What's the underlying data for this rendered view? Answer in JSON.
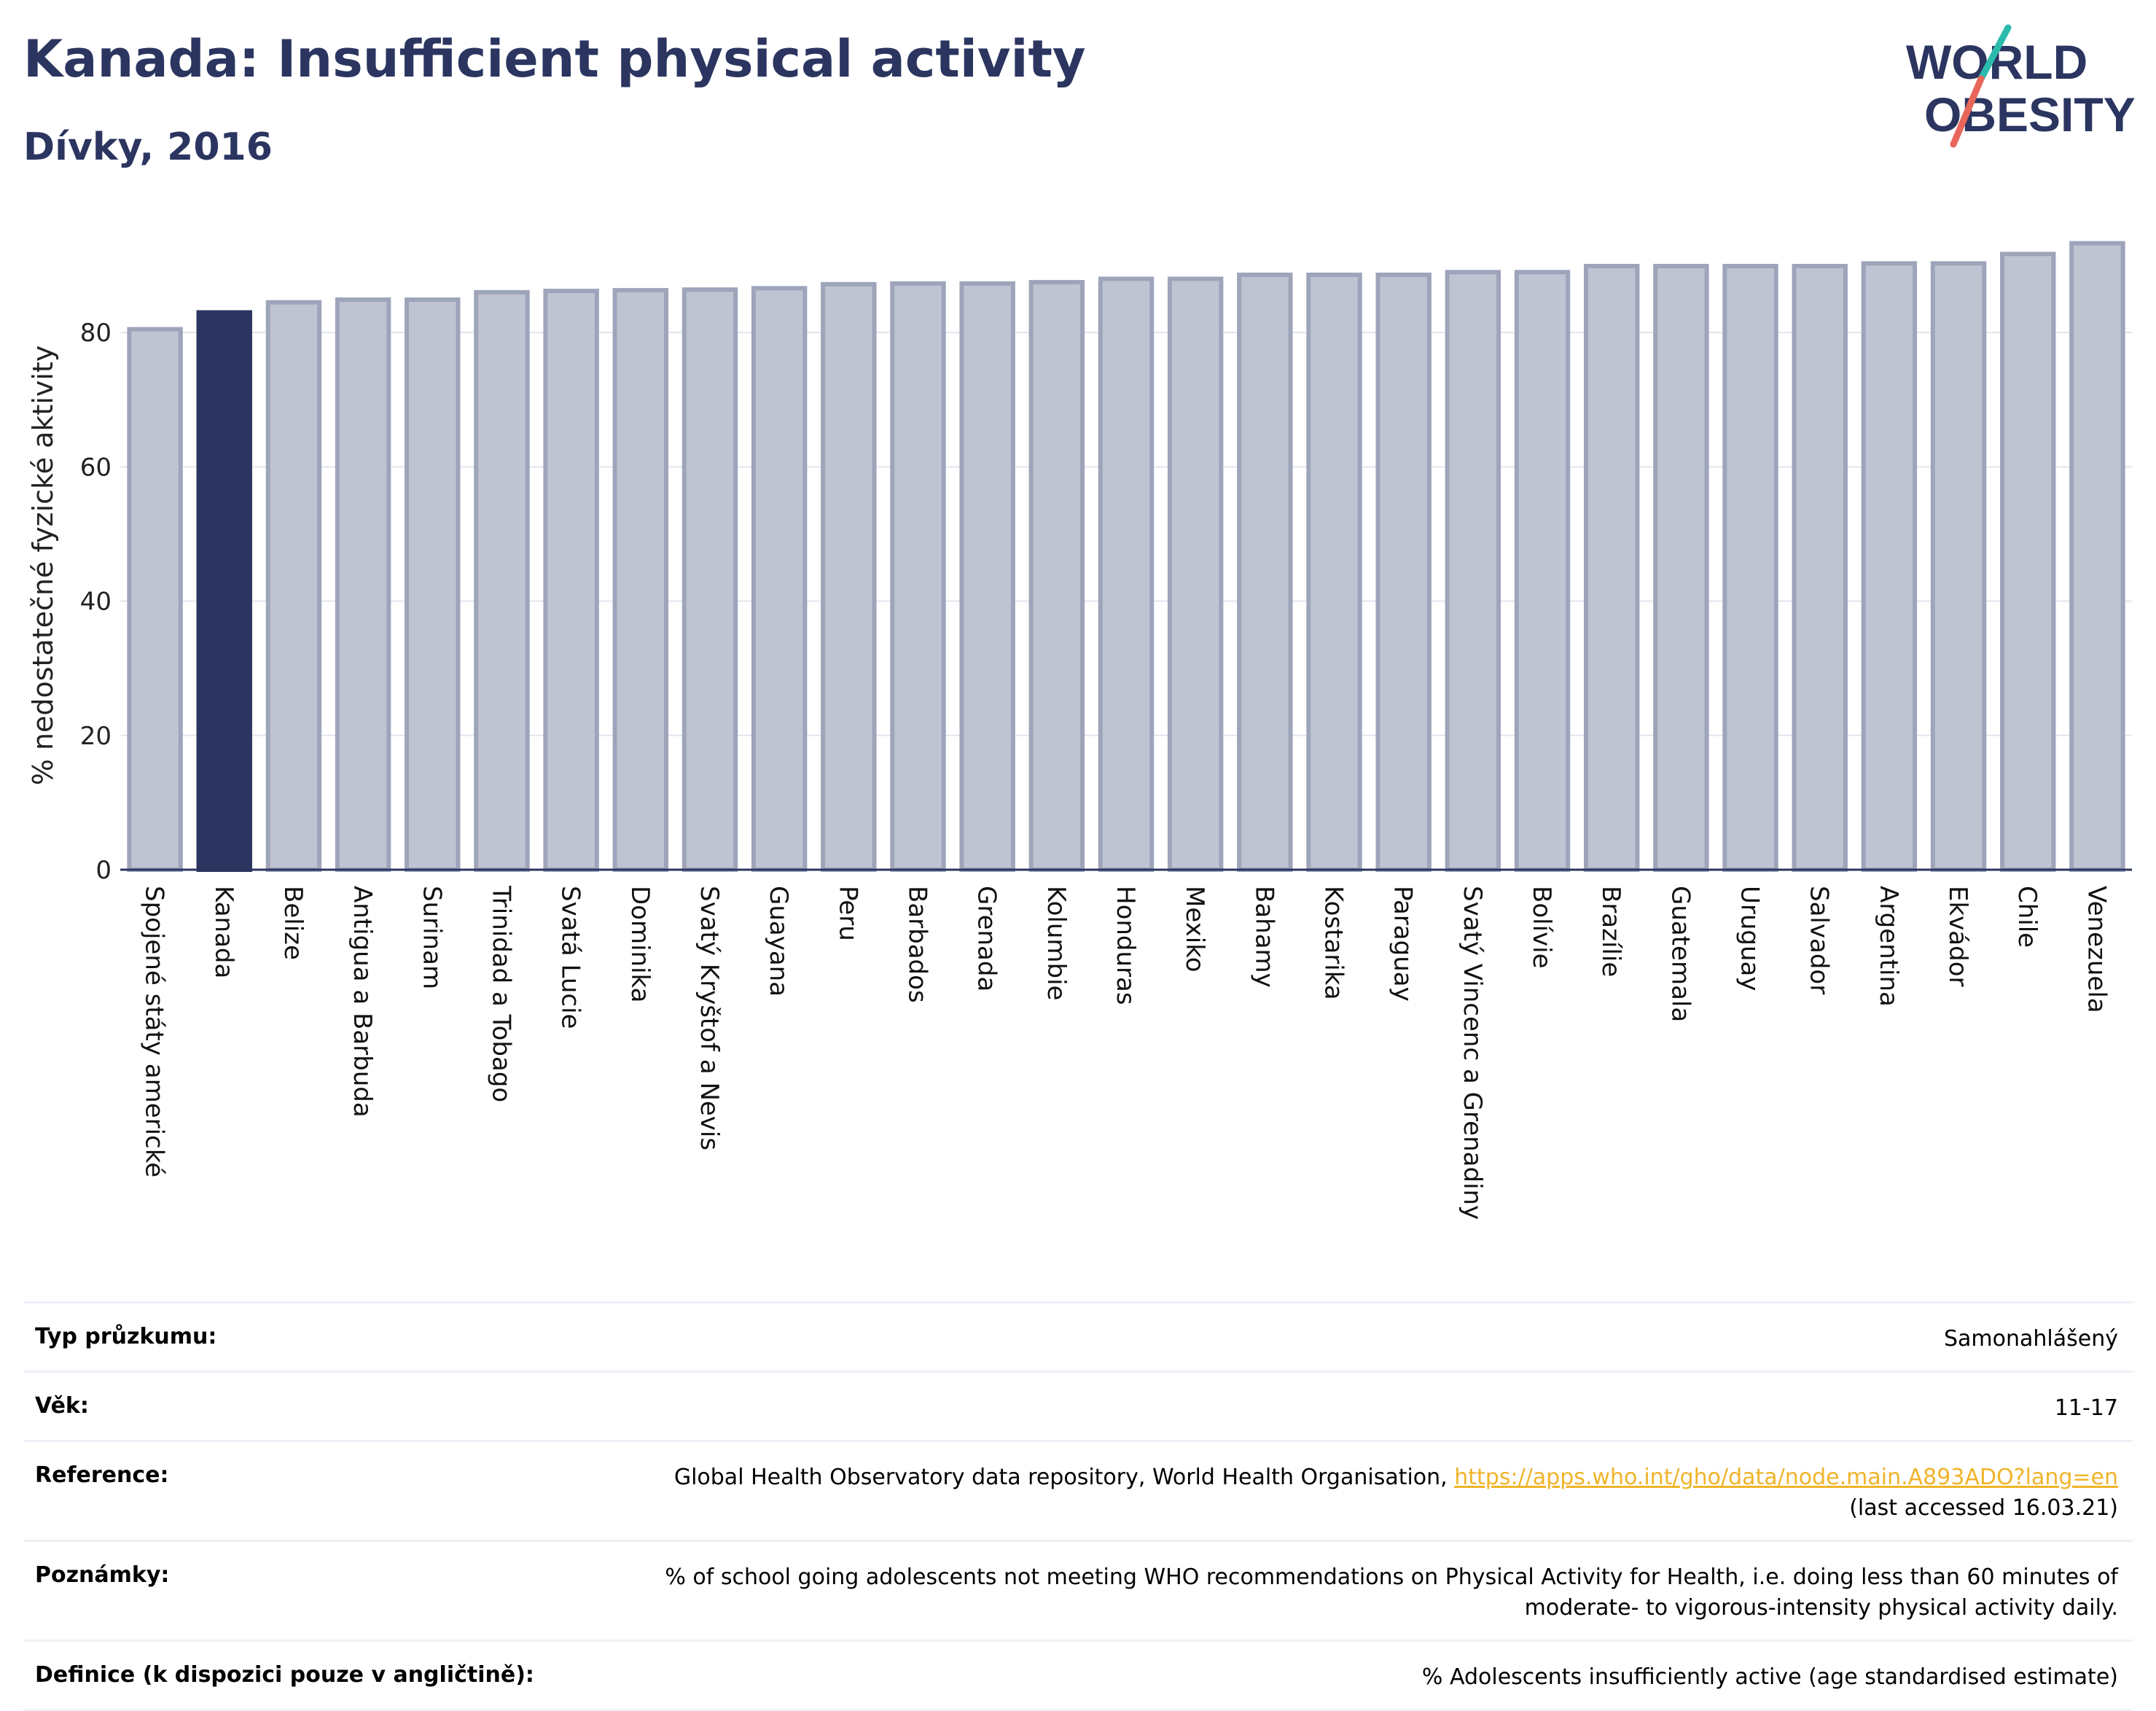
{
  "header": {
    "title": "Kanada: Insufficient physical activity",
    "subtitle": "Dívky, 2016",
    "logo_line1": "WORLD",
    "logo_line2": "OBESITY"
  },
  "colors": {
    "title": "#2b3560",
    "highlight_bar": "#2b3560",
    "bar_fill": "#c0c4d2",
    "bar_stroke": "#9ea4ba",
    "link": "#f0b429",
    "logo_teal": "#2bbbad",
    "logo_red": "#e8665a"
  },
  "chart_data": {
    "type": "bar",
    "ylabel": "% nedostatečné fyzické aktivity",
    "ylim": [
      0,
      95
    ],
    "yticks": [
      0,
      20,
      40,
      60,
      80
    ],
    "grid": true,
    "highlight": "Kanada",
    "categories": [
      "Spojené státy americké",
      "Kanada",
      "Belize",
      "Antigua a Barbuda",
      "Surinam",
      "Trinidad a Tobago",
      "Svatá Lucie",
      "Dominika",
      "Svatý Kryštof a Nevis",
      "Guayana",
      "Peru",
      "Barbados",
      "Grenada",
      "Kolumbie",
      "Honduras",
      "Mexiko",
      "Bahamy",
      "Kostarika",
      "Paraguay",
      "Svatý Vincenc a Grenadiny",
      "Bolívie",
      "Brazílie",
      "Guatemala",
      "Uruguay",
      "Salvador",
      "Argentina",
      "Ekvádor",
      "Chile",
      "Venezuela"
    ],
    "values": [
      80.5,
      83.0,
      84.5,
      84.9,
      84.9,
      86.0,
      86.2,
      86.3,
      86.4,
      86.6,
      87.2,
      87.3,
      87.3,
      87.5,
      88.0,
      88.0,
      88.6,
      88.6,
      88.6,
      89.0,
      89.0,
      89.9,
      89.9,
      89.9,
      89.9,
      90.3,
      90.3,
      91.7,
      93.3
    ]
  },
  "info": {
    "survey_label": "Typ průzkumu:",
    "survey_value": "Samonahlášený",
    "age_label": "Věk:",
    "age_value": "11-17",
    "reference_label": "Reference:",
    "reference_text": "Global Health Observatory data repository, World Health Organisation,",
    "reference_link": "https://apps.who.int/gho/data/node.main.A893ADO?lang=en",
    "reference_accessed": "(last accessed 16.03.21)",
    "notes_label": "Poznámky:",
    "notes_line1": "% of school going adolescents not meeting WHO recommendations on Physical Activity for Health, i.e. doing less than 60 minutes of",
    "notes_line2": "moderate- to vigorous-intensity physical activity daily.",
    "definition_label": "Definice (k dispozici pouze v angličtině):",
    "definition_value": "% Adolescents insufficiently active (age standardised estimate)"
  }
}
